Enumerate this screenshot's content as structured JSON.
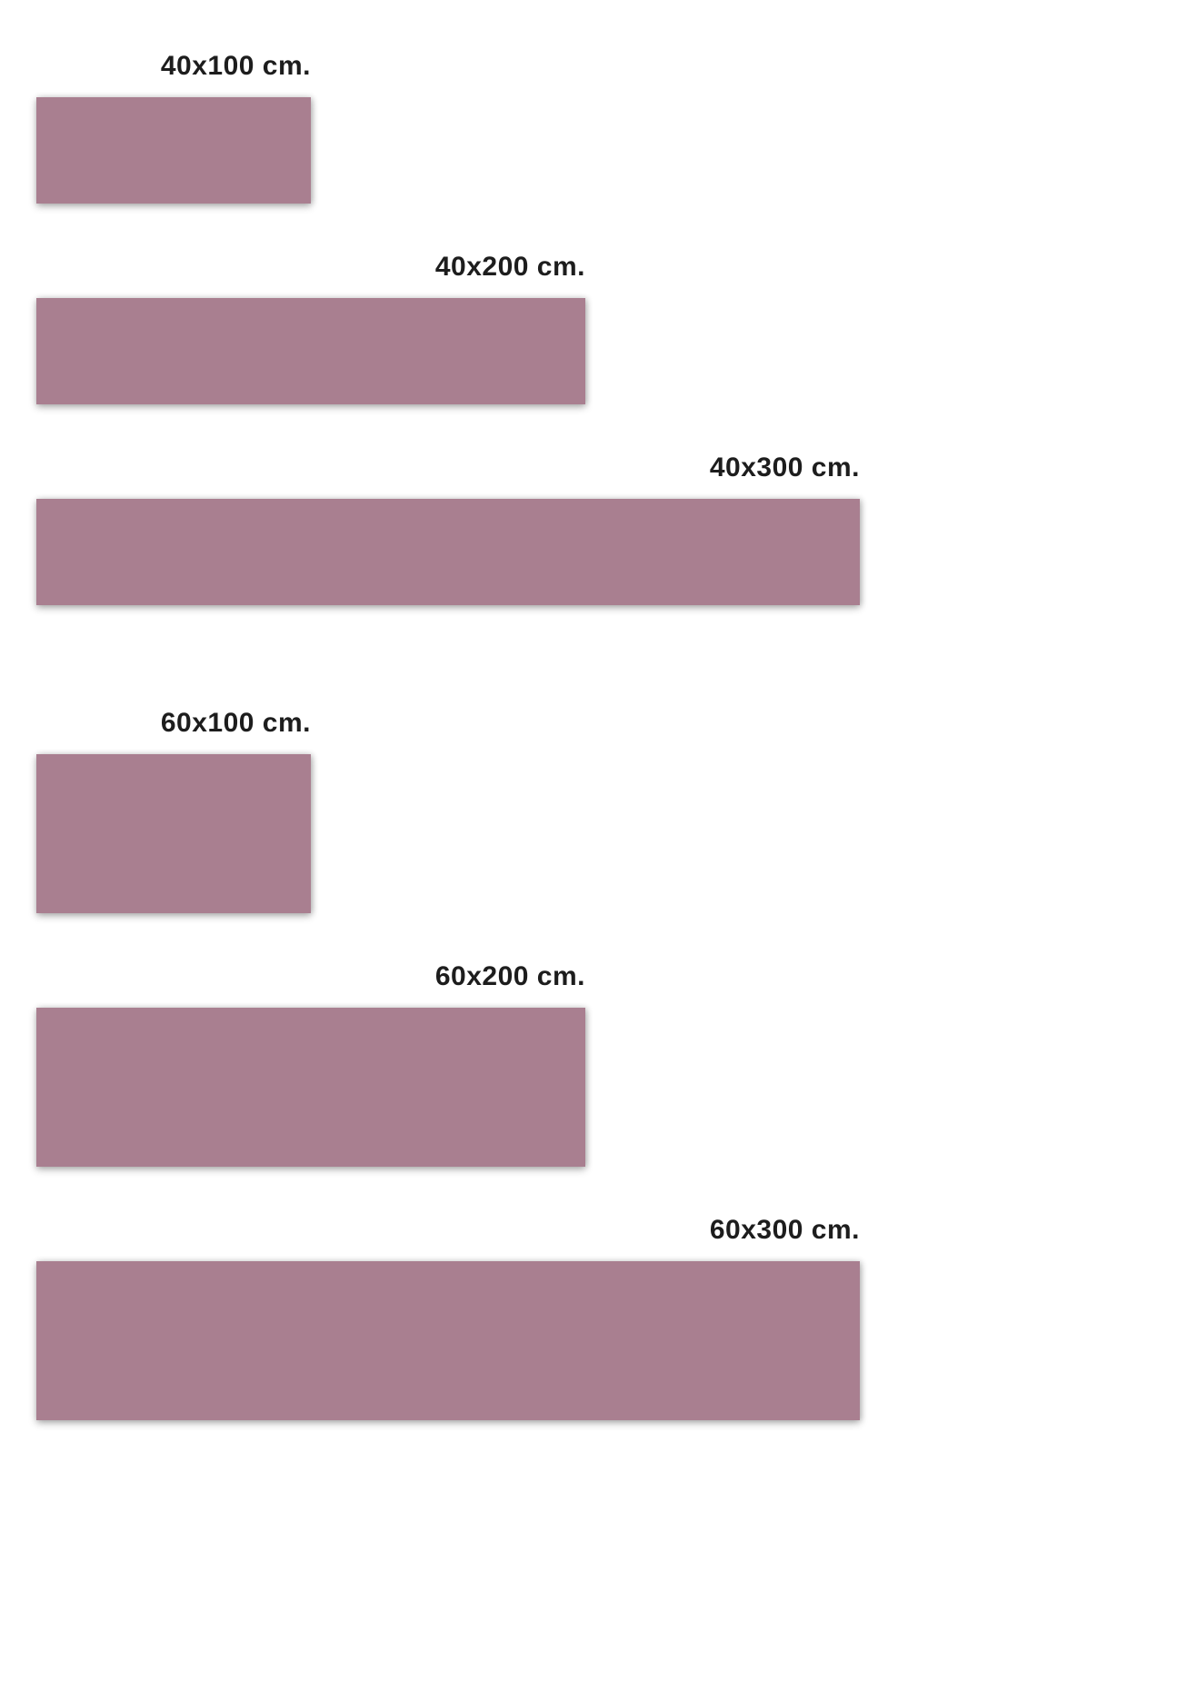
{
  "colors": {
    "swatch": "#a97f90",
    "label": "#1d1d1d",
    "background": "#ffffff"
  },
  "sizes": [
    {
      "label": "40x100 cm.",
      "height_cm": 40,
      "width_cm": 100
    },
    {
      "label": "40x200 cm.",
      "height_cm": 40,
      "width_cm": 200
    },
    {
      "label": "40x300 cm.",
      "height_cm": 40,
      "width_cm": 300
    },
    {
      "label": "60x100 cm.",
      "height_cm": 60,
      "width_cm": 100
    },
    {
      "label": "60x200 cm.",
      "height_cm": 60,
      "width_cm": 200
    },
    {
      "label": "60x300 cm.",
      "height_cm": 60,
      "width_cm": 300
    }
  ]
}
